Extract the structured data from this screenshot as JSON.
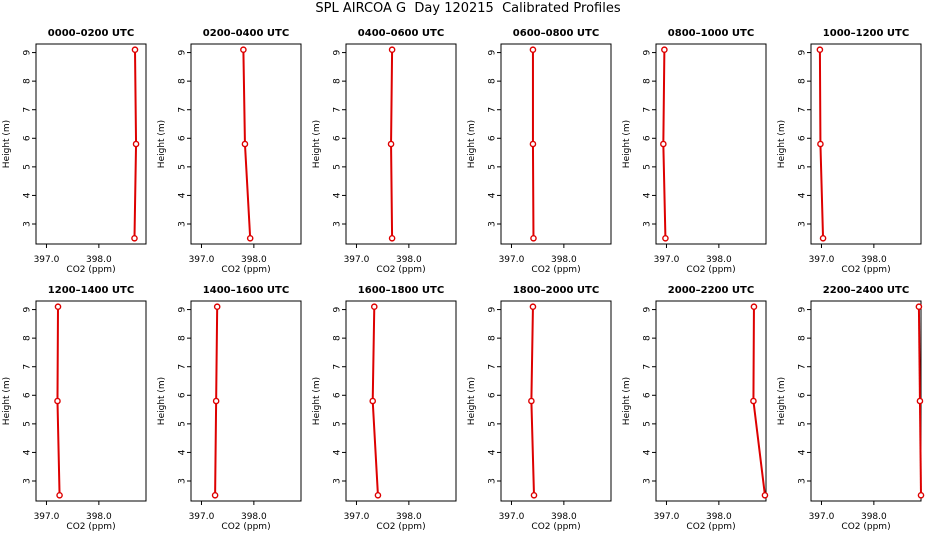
{
  "title": "SPL AIRCOA G  Day 120215  Calibrated Profiles",
  "colors": {
    "series": "#dd0000",
    "axis": "#000000"
  },
  "chart_data": [
    {
      "type": "line",
      "title": "0000–0200 UTC",
      "xlabel": "CO2 (ppm)",
      "ylabel": "Height (m)",
      "xlim": [
        396.8,
        398.9
      ],
      "ylim": [
        2.3,
        9.3
      ],
      "xticks": [
        "397.0",
        "398.0"
      ],
      "yticks": [
        "3",
        "4",
        "5",
        "6",
        "7",
        "8",
        "9"
      ],
      "x": [
        398.68,
        398.71,
        398.69
      ],
      "y": [
        2.5,
        5.8,
        9.1
      ]
    },
    {
      "type": "line",
      "title": "0200–0400 UTC",
      "xlabel": "CO2 (ppm)",
      "ylabel": "Height (m)",
      "xlim": [
        396.8,
        398.9
      ],
      "ylim": [
        2.3,
        9.3
      ],
      "xticks": [
        "397.0",
        "398.0"
      ],
      "yticks": [
        "3",
        "4",
        "5",
        "6",
        "7",
        "8",
        "9"
      ],
      "x": [
        397.93,
        397.83,
        397.8
      ],
      "y": [
        2.5,
        5.8,
        9.1
      ]
    },
    {
      "type": "line",
      "title": "0400–0600 UTC",
      "xlabel": "CO2 (ppm)",
      "ylabel": "Height (m)",
      "xlim": [
        396.8,
        398.9
      ],
      "ylim": [
        2.3,
        9.3
      ],
      "xticks": [
        "397.0",
        "398.0"
      ],
      "yticks": [
        "3",
        "4",
        "5",
        "6",
        "7",
        "8",
        "9"
      ],
      "x": [
        397.68,
        397.66,
        397.68
      ],
      "y": [
        2.5,
        5.8,
        9.1
      ]
    },
    {
      "type": "line",
      "title": "0600–0800 UTC",
      "xlabel": "CO2 (ppm)",
      "ylabel": "Height (m)",
      "xlim": [
        396.8,
        398.9
      ],
      "ylim": [
        2.3,
        9.3
      ],
      "xticks": [
        "397.0",
        "398.0"
      ],
      "yticks": [
        "3",
        "4",
        "5",
        "6",
        "7",
        "8",
        "9"
      ],
      "x": [
        397.42,
        397.41,
        397.41
      ],
      "y": [
        2.5,
        5.8,
        9.1
      ]
    },
    {
      "type": "line",
      "title": "0800–1000 UTC",
      "xlabel": "CO2 (ppm)",
      "ylabel": "Height (m)",
      "xlim": [
        396.8,
        398.9
      ],
      "ylim": [
        2.3,
        9.3
      ],
      "xticks": [
        "397.0",
        "398.0"
      ],
      "yticks": [
        "3",
        "4",
        "5",
        "6",
        "7",
        "8",
        "9"
      ],
      "x": [
        396.98,
        396.94,
        396.96
      ],
      "y": [
        2.5,
        5.8,
        9.1
      ]
    },
    {
      "type": "line",
      "title": "1000–1200 UTC",
      "xlabel": "CO2 (ppm)",
      "ylabel": "Height (m)",
      "xlim": [
        396.8,
        398.9
      ],
      "ylim": [
        2.3,
        9.3
      ],
      "xticks": [
        "397.0",
        "398.0"
      ],
      "yticks": [
        "3",
        "4",
        "5",
        "6",
        "7",
        "8",
        "9"
      ],
      "x": [
        397.03,
        396.98,
        396.97
      ],
      "y": [
        2.5,
        5.8,
        9.1
      ]
    },
    {
      "type": "line",
      "title": "1200–1400 UTC",
      "xlabel": "CO2 (ppm)",
      "ylabel": "Height (m)",
      "xlim": [
        396.8,
        398.9
      ],
      "ylim": [
        2.3,
        9.3
      ],
      "xticks": [
        "397.0",
        "398.0"
      ],
      "yticks": [
        "3",
        "4",
        "5",
        "6",
        "7",
        "8",
        "9"
      ],
      "x": [
        397.25,
        397.21,
        397.22
      ],
      "y": [
        2.5,
        5.8,
        9.1
      ]
    },
    {
      "type": "line",
      "title": "1400–1600 UTC",
      "xlabel": "CO2 (ppm)",
      "ylabel": "Height (m)",
      "xlim": [
        396.8,
        398.9
      ],
      "ylim": [
        2.3,
        9.3
      ],
      "xticks": [
        "397.0",
        "398.0"
      ],
      "yticks": [
        "3",
        "4",
        "5",
        "6",
        "7",
        "8",
        "9"
      ],
      "x": [
        397.26,
        397.28,
        397.3
      ],
      "y": [
        2.5,
        5.8,
        9.1
      ]
    },
    {
      "type": "line",
      "title": "1600–1800 UTC",
      "xlabel": "CO2 (ppm)",
      "ylabel": "Height (m)",
      "xlim": [
        396.8,
        398.9
      ],
      "ylim": [
        2.3,
        9.3
      ],
      "xticks": [
        "397.0",
        "398.0"
      ],
      "yticks": [
        "3",
        "4",
        "5",
        "6",
        "7",
        "8",
        "9"
      ],
      "x": [
        397.41,
        397.31,
        397.34
      ],
      "y": [
        2.5,
        5.8,
        9.1
      ]
    },
    {
      "type": "line",
      "title": "1800–2000 UTC",
      "xlabel": "CO2 (ppm)",
      "ylabel": "Height (m)",
      "xlim": [
        396.8,
        398.9
      ],
      "ylim": [
        2.3,
        9.3
      ],
      "xticks": [
        "397.0",
        "398.0"
      ],
      "yticks": [
        "3",
        "4",
        "5",
        "6",
        "7",
        "8",
        "9"
      ],
      "x": [
        397.43,
        397.38,
        397.41
      ],
      "y": [
        2.5,
        5.8,
        9.1
      ]
    },
    {
      "type": "line",
      "title": "2000–2200 UTC",
      "xlabel": "CO2 (ppm)",
      "ylabel": "Height (m)",
      "xlim": [
        396.8,
        398.9
      ],
      "ylim": [
        2.3,
        9.3
      ],
      "xticks": [
        "397.0",
        "398.0"
      ],
      "yticks": [
        "3",
        "4",
        "5",
        "6",
        "7",
        "8",
        "9"
      ],
      "x": [
        398.88,
        398.66,
        398.67
      ],
      "y": [
        2.5,
        5.8,
        9.1
      ]
    },
    {
      "type": "line",
      "title": "2200–2400 UTC",
      "xlabel": "CO2 (ppm)",
      "ylabel": "Height (m)",
      "xlim": [
        396.8,
        398.9
      ],
      "ylim": [
        2.3,
        9.3
      ],
      "xticks": [
        "397.0",
        "398.0"
      ],
      "yticks": [
        "3",
        "4",
        "5",
        "6",
        "7",
        "8",
        "9"
      ],
      "x": [
        398.9,
        398.88,
        398.86
      ],
      "y": [
        2.5,
        5.8,
        9.1
      ]
    }
  ]
}
